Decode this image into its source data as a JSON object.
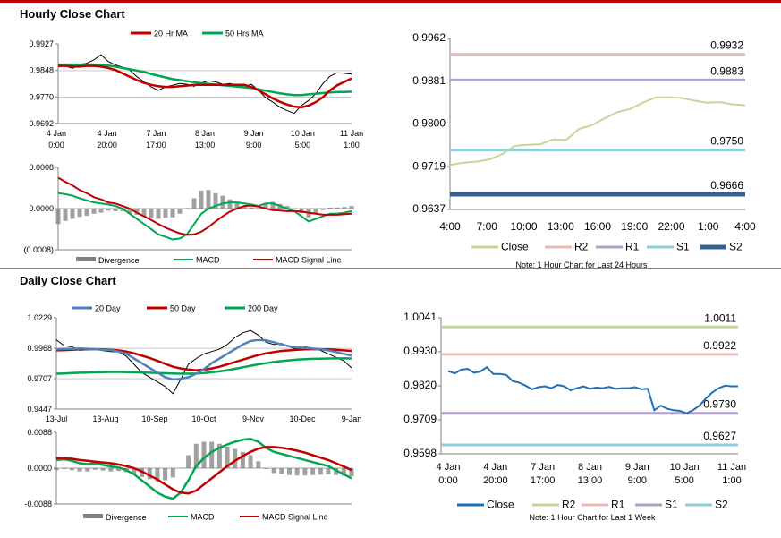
{
  "sections": {
    "hourly_title": "Hourly Close Chart",
    "daily_title": "Daily Close Chart"
  },
  "colors": {
    "ma_short": "#c00000",
    "ma_long": "#00a650",
    "ma_20day": "#4f81bd",
    "close": "#c4d79b",
    "r2": "#e6b8b7",
    "r1": "#b1a0c7",
    "s1": "#92cddc",
    "s2": "#366092",
    "close_blue": "#1f6fb5",
    "daily_r2": "#c4d79b",
    "daily_r1": "#e6b8b7",
    "daily_s1": "#b1a0c7",
    "daily_s2": "#92cddc",
    "macd": "#00a650",
    "signal": "#c00000",
    "divergence": "#808080",
    "price": "#000000"
  },
  "chart_data": [
    {
      "id": "hourly-price",
      "type": "line",
      "title": "Hourly Close Chart",
      "ylim": [
        0.9692,
        0.9927
      ],
      "yticks": [
        "0.9927",
        "0.9848",
        "0.9770",
        "0.9692"
      ],
      "xticks": [
        [
          "4 Jan",
          "0:00"
        ],
        [
          "4 Jan",
          "20:00"
        ],
        [
          "7 Jan",
          "17:00"
        ],
        [
          "8 Jan",
          "13:00"
        ],
        [
          "9 Jan",
          "9:00"
        ],
        [
          "10 Jan",
          "5:00"
        ],
        [
          "11 Jan",
          "1:00"
        ]
      ],
      "legend": [
        "20 Hr MA",
        "50 Hrs MA"
      ],
      "series": [
        {
          "name": "Price",
          "values": [
            0.986,
            0.9862,
            0.9855,
            0.9866,
            0.987,
            0.988,
            0.9895,
            0.9875,
            0.9865,
            0.9858,
            0.985,
            0.983,
            0.9815,
            0.98,
            0.979,
            0.98,
            0.9805,
            0.981,
            0.9808,
            0.9802,
            0.9812,
            0.9818,
            0.9815,
            0.9808,
            0.981,
            0.9805,
            0.98,
            0.9808,
            0.979,
            0.9768,
            0.9755,
            0.974,
            0.973,
            0.9722,
            0.9745,
            0.976,
            0.978,
            0.981,
            0.9832,
            0.9842,
            0.984,
            0.9838
          ]
        },
        {
          "name": "20 Hr MA",
          "values": [
            0.9862,
            0.9862,
            0.986,
            0.986,
            0.9862,
            0.9862,
            0.986,
            0.9856,
            0.985,
            0.984,
            0.983,
            0.982,
            0.9812,
            0.9806,
            0.9802,
            0.98,
            0.98,
            0.9802,
            0.9804,
            0.9806,
            0.9806,
            0.9806,
            0.9806,
            0.9806,
            0.9806,
            0.9806,
            0.9806,
            0.98,
            0.979,
            0.9778,
            0.9766,
            0.9756,
            0.9748,
            0.9742,
            0.974,
            0.9745,
            0.9755,
            0.977,
            0.979,
            0.9805,
            0.9815,
            0.9825
          ]
        },
        {
          "name": "50 Hrs MA",
          "values": [
            0.9866,
            0.9866,
            0.9866,
            0.9866,
            0.9866,
            0.9866,
            0.9865,
            0.9863,
            0.986,
            0.9856,
            0.9852,
            0.9848,
            0.9844,
            0.9838,
            0.9833,
            0.9828,
            0.9823,
            0.982,
            0.9817,
            0.9814,
            0.9811,
            0.9809,
            0.9807,
            0.9805,
            0.9803,
            0.9801,
            0.9799,
            0.9797,
            0.9793,
            0.9789,
            0.9785,
            0.9781,
            0.9778,
            0.9776,
            0.9776,
            0.9778,
            0.978,
            0.9782,
            0.9784,
            0.9785,
            0.9785,
            0.9786
          ]
        }
      ]
    },
    {
      "id": "hourly-macd",
      "type": "line",
      "ylim": [
        -0.0008,
        0.0008
      ],
      "yticks": [
        "0.0008",
        "0.0000",
        "(0.0008)"
      ],
      "legend": [
        "Divergence",
        "MACD",
        "MACD Signal Line"
      ],
      "series": [
        {
          "name": "MACD",
          "values": [
            0.0003,
            0.00028,
            0.00025,
            0.0002,
            0.00016,
            0.00012,
            0.0001,
            8e-05,
            5e-05,
            0.0,
            -0.0001,
            -0.0002,
            -0.0003,
            -0.0004,
            -0.0005,
            -0.00055,
            -0.0006,
            -0.00058,
            -0.0005,
            -0.0003,
            -0.0001,
            0.0,
            5e-05,
            0.0001,
            0.00012,
            0.00012,
            0.0001,
            8e-05,
            5e-05,
            0.0001,
            0.0001,
            5e-05,
            0.0,
            -5e-05,
            -0.00015,
            -0.00025,
            -0.0002,
            -0.00015,
            -0.0001,
            -0.0001,
            -8e-05,
            -5e-05
          ]
        },
        {
          "name": "MACD Signal Line",
          "values": [
            0.0006,
            0.00052,
            0.00045,
            0.00036,
            0.0003,
            0.00022,
            0.00018,
            0.00012,
            0.0001,
            5e-05,
            0.0,
            -8e-05,
            -0.00015,
            -0.00022,
            -0.0003,
            -0.00037,
            -0.00043,
            -0.00048,
            -0.00051,
            -0.0005,
            -0.00045,
            -0.00036,
            -0.00025,
            -0.00015,
            -6e-05,
            0.0,
            5e-05,
            6e-05,
            4e-05,
            0.0,
            -3e-05,
            -4e-05,
            -5e-05,
            -5e-05,
            -6e-05,
            -8e-05,
            -0.0001,
            -0.00012,
            -0.00012,
            -0.00012,
            -0.00011,
            -0.0001
          ]
        }
      ]
    },
    {
      "id": "hourly-levels",
      "type": "line",
      "ylim": [
        0.9637,
        0.9962
      ],
      "yticks": [
        "0.9962",
        "0.9881",
        "0.9800",
        "0.9719",
        "0.9637"
      ],
      "xticks": [
        "4:00",
        "7:00",
        "10:00",
        "13:00",
        "16:00",
        "19:00",
        "22:00",
        "1:00",
        "4:00"
      ],
      "legend": [
        "Close",
        "R2",
        "R1",
        "S1",
        "S2"
      ],
      "note": "Note: 1 Hour Chart for Last 24 Hours",
      "levels": [
        {
          "name": "R2",
          "value": 0.9932,
          "label": "0.9932"
        },
        {
          "name": "R1",
          "value": 0.9883,
          "label": "0.9883"
        },
        {
          "name": "S1",
          "value": 0.975,
          "label": "0.9750"
        },
        {
          "name": "S2",
          "value": 0.9666,
          "label": "0.9666"
        }
      ],
      "series": [
        {
          "name": "Close",
          "values": [
            0.9722,
            0.9726,
            0.9728,
            0.9732,
            0.9742,
            0.9758,
            0.976,
            0.9761,
            0.977,
            0.9769,
            0.979,
            0.9797,
            0.981,
            0.9822,
            0.9828,
            0.984,
            0.985,
            0.985,
            0.9849,
            0.9844,
            0.984,
            0.9841,
            0.9837,
            0.9835
          ]
        }
      ]
    },
    {
      "id": "daily-price",
      "type": "line",
      "title": "Daily Close Chart",
      "ylim": [
        0.9447,
        1.0229
      ],
      "yticks": [
        "1.0229",
        "0.9968",
        "0.9707",
        "0.9447"
      ],
      "xticks": [
        "13-Jul",
        "13-Aug",
        "10-Sep",
        "10-Oct",
        "9-Nov",
        "10-Dec",
        "9-Jan"
      ],
      "legend": [
        "20 Day",
        "50 Day",
        "200 Day"
      ],
      "series": [
        {
          "name": "Price",
          "values": [
            1.004,
            0.999,
            0.998,
            0.995,
            0.9955,
            0.996,
            0.9948,
            0.994,
            0.9935,
            0.99,
            0.983,
            0.976,
            0.972,
            0.968,
            0.964,
            0.958,
            0.97,
            0.983,
            0.988,
            0.992,
            0.994,
            0.996,
            1.0,
            1.006,
            1.01,
            1.012,
            1.008,
            1.002,
            1.0,
            1.001,
            0.998,
            0.996,
            0.998,
            0.997,
            0.995,
            0.992,
            0.989,
            0.986,
            0.98
          ]
        },
        {
          "name": "20 Day",
          "values": [
            0.996,
            0.9962,
            0.9964,
            0.9966,
            0.9964,
            0.996,
            0.9955,
            0.9952,
            0.994,
            0.992,
            0.988,
            0.984,
            0.98,
            0.976,
            0.972,
            0.97,
            0.9705,
            0.972,
            0.975,
            0.979,
            0.984,
            0.988,
            0.992,
            0.996,
            1.0,
            1.003,
            1.004,
            1.0035,
            1.002,
            1.0,
            0.9985,
            0.9975,
            0.997,
            0.9965,
            0.996,
            0.995,
            0.9935,
            0.992,
            0.9905
          ]
        },
        {
          "name": "50 Day",
          "values": [
            0.995,
            0.9952,
            0.9955,
            0.9958,
            0.996,
            0.996,
            0.9958,
            0.9955,
            0.995,
            0.994,
            0.9925,
            0.9905,
            0.9885,
            0.986,
            0.9835,
            0.981,
            0.9795,
            0.9785,
            0.978,
            0.9785,
            0.9795,
            0.981,
            0.983,
            0.985,
            0.987,
            0.989,
            0.991,
            0.9925,
            0.9935,
            0.9945,
            0.995,
            0.9955,
            0.9958,
            0.996,
            0.996,
            0.9958,
            0.9955,
            0.995,
            0.9945
          ]
        },
        {
          "name": "200 Day",
          "values": [
            0.975,
            0.9752,
            0.9755,
            0.9758,
            0.976,
            0.9762,
            0.9764,
            0.9765,
            0.9765,
            0.9764,
            0.9762,
            0.976,
            0.9758,
            0.9756,
            0.9754,
            0.9752,
            0.975,
            0.975,
            0.9752,
            0.9756,
            0.9762,
            0.977,
            0.978,
            0.9792,
            0.9805,
            0.9818,
            0.983,
            0.984,
            0.985,
            0.9858,
            0.9865,
            0.987,
            0.9874,
            0.9877,
            0.9879,
            0.988,
            0.9881,
            0.9881,
            0.988
          ]
        }
      ]
    },
    {
      "id": "daily-macd",
      "type": "line",
      "ylim": [
        -0.0088,
        0.0088
      ],
      "yticks": [
        "0.0088",
        "0.0000",
        "-0.0088"
      ],
      "legend": [
        "Divergence",
        "MACD",
        "MACD Signal Line"
      ],
      "series": [
        {
          "name": "MACD",
          "values": [
            0.002,
            0.0022,
            0.0018,
            0.0012,
            0.001,
            0.0012,
            0.0008,
            0.0004,
            0.0002,
            -0.0005,
            -0.0015,
            -0.003,
            -0.0045,
            -0.006,
            -0.007,
            -0.0075,
            -0.006,
            -0.003,
            0.0005,
            0.0025,
            0.004,
            0.005,
            0.0058,
            0.0065,
            0.007,
            0.0072,
            0.0065,
            0.005,
            0.004,
            0.0035,
            0.003,
            0.0025,
            0.002,
            0.0015,
            0.001,
            0.0005,
            -0.0005,
            -0.0015,
            -0.0025
          ]
        },
        {
          "name": "MACD Signal Line",
          "values": [
            0.0025,
            0.0024,
            0.0023,
            0.002,
            0.0018,
            0.0016,
            0.0014,
            0.0012,
            0.0009,
            0.0005,
            0.0,
            -0.0008,
            -0.0018,
            -0.0028,
            -0.004,
            -0.0052,
            -0.006,
            -0.0062,
            -0.0055,
            -0.004,
            -0.0025,
            -0.001,
            0.0005,
            0.0018,
            0.003,
            0.004,
            0.0048,
            0.0052,
            0.0052,
            0.005,
            0.0047,
            0.0043,
            0.0038,
            0.0032,
            0.0026,
            0.002,
            0.0012,
            0.0004,
            -0.0005
          ]
        }
      ]
    },
    {
      "id": "daily-levels",
      "type": "line",
      "ylim": [
        0.9598,
        1.0041
      ],
      "yticks": [
        "1.0041",
        "0.9930",
        "0.9820",
        "0.9709",
        "0.9598"
      ],
      "xticks": [
        [
          "4 Jan",
          "0:00"
        ],
        [
          "4 Jan",
          "20:00"
        ],
        [
          "7 Jan",
          "17:00"
        ],
        [
          "8 Jan",
          "13:00"
        ],
        [
          "9 Jan",
          "9:00"
        ],
        [
          "10 Jan",
          "5:00"
        ],
        [
          "11 Jan",
          "1:00"
        ]
      ],
      "legend": [
        "Close",
        "R2",
        "R1",
        "S1",
        "S2"
      ],
      "note": "Note: 1 Hour Chart for Last 1 Week",
      "levels": [
        {
          "name": "R2",
          "value": 1.0011,
          "label": "1.0011"
        },
        {
          "name": "R1",
          "value": 0.9922,
          "label": "0.9922"
        },
        {
          "name": "S1",
          "value": 0.973,
          "label": "0.9730"
        },
        {
          "name": "S2",
          "value": 0.9627,
          "label": "0.9627"
        }
      ],
      "series": [
        {
          "name": "Close",
          "values": [
            0.9868,
            0.986,
            0.9872,
            0.9875,
            0.9862,
            0.9866,
            0.988,
            0.9858,
            0.9858,
            0.9855,
            0.9835,
            0.983,
            0.982,
            0.9808,
            0.9815,
            0.9818,
            0.9812,
            0.9822,
            0.9818,
            0.9805,
            0.9812,
            0.9818,
            0.981,
            0.9814,
            0.9812,
            0.9816,
            0.981,
            0.9812,
            0.9812,
            0.9815,
            0.9808,
            0.981,
            0.974,
            0.9755,
            0.9745,
            0.974,
            0.9738,
            0.973,
            0.974,
            0.9755,
            0.9778,
            0.9798,
            0.9812,
            0.982,
            0.9818,
            0.9818
          ]
        }
      ]
    }
  ]
}
